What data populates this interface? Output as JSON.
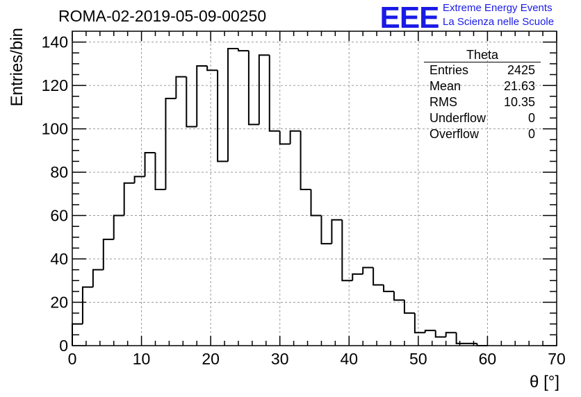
{
  "header": {
    "run_title": "ROMA-02-2019-05-09-00250",
    "logo_letters": "EEE",
    "logo_line1": "Extreme Energy Events",
    "logo_line2": "La Scienza nelle Scuole",
    "logo_color": "#1a1ae6"
  },
  "stats_box": {
    "title": "Theta",
    "rows": [
      {
        "label": "Entries",
        "value": "2425"
      },
      {
        "label": "Mean",
        "value": "21.63"
      },
      {
        "label": "RMS",
        "value": "10.35"
      },
      {
        "label": "Underflow",
        "value": "0"
      },
      {
        "label": "Overflow",
        "value": "0"
      }
    ]
  },
  "chart_data": {
    "type": "bar",
    "style": "step-histogram",
    "xlabel": "θ [°]",
    "ylabel": "Entries/bin",
    "xlim": [
      0,
      70
    ],
    "ylim": [
      0,
      145
    ],
    "x_ticks": [
      0,
      10,
      20,
      30,
      40,
      50,
      60,
      70
    ],
    "y_ticks": [
      0,
      20,
      40,
      60,
      80,
      100,
      120,
      140
    ],
    "grid": true,
    "bin_width": 1.5,
    "bin_start": 0,
    "values": [
      10,
      27,
      35,
      49,
      60,
      75,
      78,
      89,
      72,
      114,
      124,
      101,
      129,
      127,
      85,
      137,
      136,
      102,
      134,
      99,
      93,
      99,
      72,
      60,
      47,
      58,
      30,
      33,
      36,
      28,
      25,
      21,
      15,
      6,
      7,
      4,
      6,
      1,
      1,
      0
    ]
  }
}
